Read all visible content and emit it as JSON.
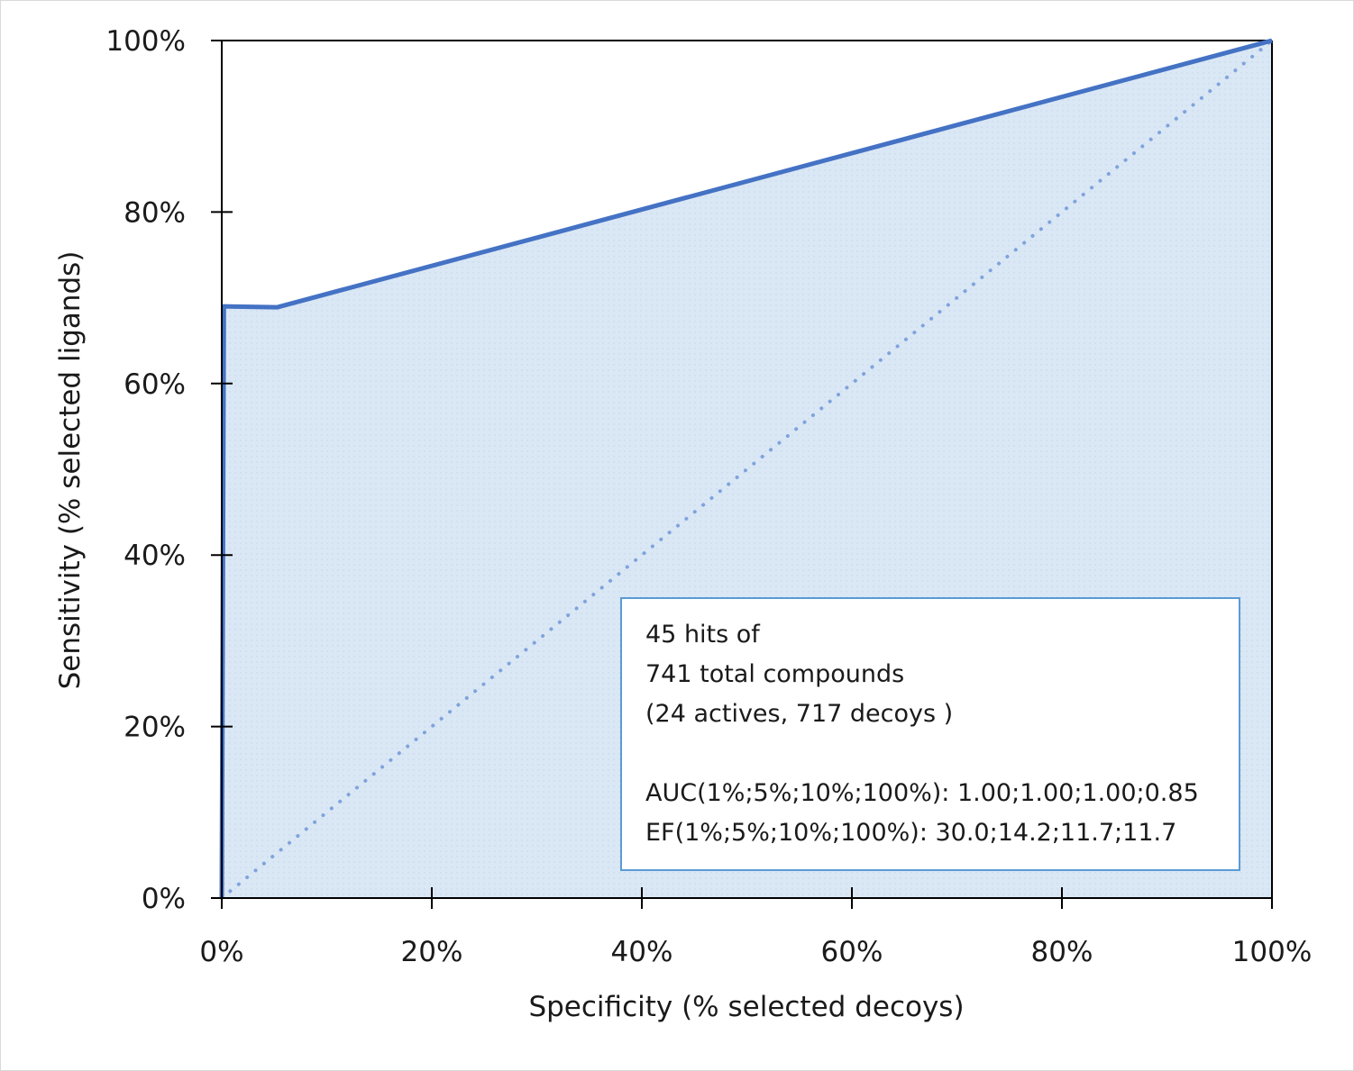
{
  "chart_data": {
    "type": "area",
    "title": "",
    "xlabel": "Specificity (% selected decoys)",
    "ylabel": "Sensitivity (% selected ligands)",
    "xlim": [
      0,
      100
    ],
    "ylim": [
      0,
      100
    ],
    "x_ticks": [
      "0%",
      "20%",
      "40%",
      "60%",
      "80%",
      "100%"
    ],
    "y_ticks": [
      "0%",
      "20%",
      "40%",
      "60%",
      "80%",
      "100%"
    ],
    "grid": false,
    "series": [
      {
        "values_xy": [
          [
            0,
            0
          ],
          [
            0.2,
            69
          ],
          [
            5.3,
            68.9
          ],
          [
            100,
            100
          ]
        ],
        "style": "solid line with shaded area under curve",
        "color": "#4472c4",
        "fill": "#dae7f5"
      },
      {
        "values_xy": [
          [
            0,
            0
          ],
          [
            100,
            100
          ]
        ],
        "style": "dotted diagonal",
        "color": "#7fa3dc"
      }
    ],
    "annotation": {
      "lines": [
        "45 hits of",
        "741 total compounds",
        "(24 actives, 717 decoys )",
        "",
        "AUC(1%;5%;10%;100%): 1.00;1.00;1.00;0.85",
        "EF(1%;5%;10%;100%): 30.0;14.2;11.7;11.7"
      ],
      "border_color": "#5b9bd5"
    }
  }
}
